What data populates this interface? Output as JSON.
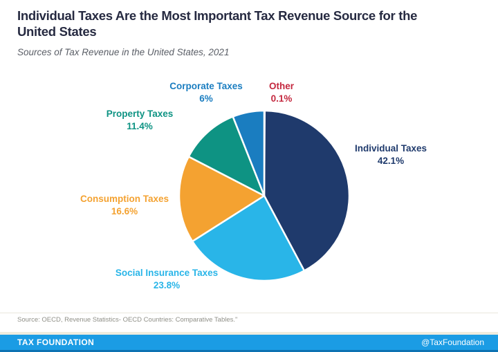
{
  "header": {
    "title": "Individual Taxes Are the Most Important Tax Revenue Source for the United States",
    "subtitle": "Sources of Tax Revenue in the United States, 2021"
  },
  "chart_data": {
    "type": "pie",
    "title": "Individual Taxes Are the Most Important Tax Revenue Source for the United States",
    "subtitle": "Sources of Tax Revenue in the United States, 2021",
    "unit": "percent",
    "start_angle_deg": -90,
    "direction": "clockwise",
    "stroke_color": "#ffffff",
    "legend": "labels-around-pie",
    "slices": [
      {
        "id": "other",
        "label": "Other",
        "value": 0.1,
        "display": "0.1%",
        "color": "#c4283f"
      },
      {
        "id": "individual-taxes",
        "label": "Individual Taxes",
        "value": 42.1,
        "display": "42.1%",
        "color": "#1f3a6c"
      },
      {
        "id": "social-insurance-taxes",
        "label": "Social Insurance Taxes",
        "value": 23.8,
        "display": "23.8%",
        "color": "#29b5e8"
      },
      {
        "id": "consumption-taxes",
        "label": "Consumption Taxes",
        "value": 16.6,
        "display": "16.6%",
        "color": "#f4a231"
      },
      {
        "id": "property-taxes",
        "label": "Property Taxes",
        "value": 11.4,
        "display": "11.4%",
        "color": "#0e9383"
      },
      {
        "id": "corporate-taxes",
        "label": "Corporate Taxes",
        "value": 6,
        "display": "6%",
        "color": "#1a7dc0"
      }
    ]
  },
  "footer": {
    "source": "Source: OECD, Revenue Statistics- OECD Countries: Comparative Tables.\"",
    "brand": "TAX FOUNDATION",
    "handle": "@TaxFoundation",
    "bar_color": "#1b9ce4"
  }
}
